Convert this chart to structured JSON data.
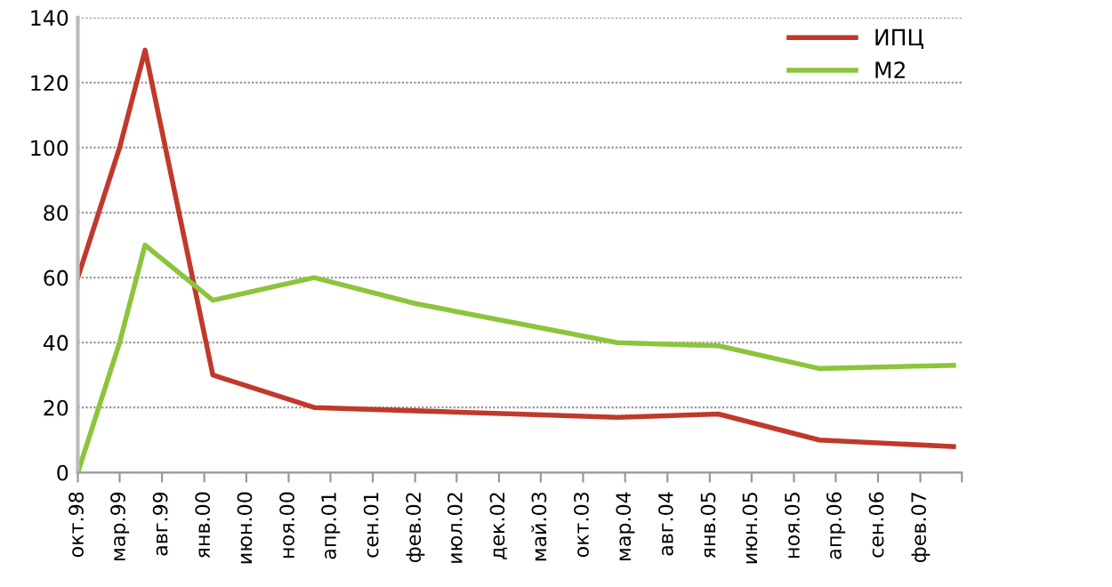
{
  "chart_data": {
    "type": "line",
    "x": [
      "1998-10",
      "1999-03",
      "1999-06",
      "2000-02",
      "2001-02",
      "2002-02",
      "2003-02",
      "2004-02",
      "2005-02",
      "2006-02",
      "2007-06"
    ],
    "series": [
      {
        "name": "ИПЦ",
        "color": "#c0392b",
        "values": [
          60,
          100,
          130,
          30,
          20,
          19,
          18,
          17,
          18,
          10,
          8
        ]
      },
      {
        "name": "M2",
        "color": "#8cc43c",
        "values": [
          0,
          40,
          70,
          53,
          60,
          52,
          46,
          40,
          39,
          32,
          33
        ]
      }
    ],
    "xlim": [
      "1998-10",
      "2007-07"
    ],
    "xticks": [
      {
        "value": "1998-10",
        "label": "окт.98"
      },
      {
        "value": "1999-03",
        "label": "мар.99"
      },
      {
        "value": "1999-08",
        "label": "авг.99"
      },
      {
        "value": "2000-01",
        "label": "янв.00"
      },
      {
        "value": "2000-06",
        "label": "июн.00"
      },
      {
        "value": "2000-11",
        "label": "ноя.00"
      },
      {
        "value": "2001-04",
        "label": "апр.01"
      },
      {
        "value": "2001-09",
        "label": "сен.01"
      },
      {
        "value": "2002-02",
        "label": "фев.02"
      },
      {
        "value": "2002-07",
        "label": "июл.02"
      },
      {
        "value": "2002-12",
        "label": "дек.02"
      },
      {
        "value": "2003-05",
        "label": "май.03"
      },
      {
        "value": "2003-10",
        "label": "окт.03"
      },
      {
        "value": "2004-03",
        "label": "мар.04"
      },
      {
        "value": "2004-08",
        "label": "авг.04"
      },
      {
        "value": "2005-01",
        "label": "янв.05"
      },
      {
        "value": "2005-06",
        "label": "июн.05"
      },
      {
        "value": "2005-11",
        "label": "ноя.05"
      },
      {
        "value": "2006-04",
        "label": "апр.06"
      },
      {
        "value": "2006-09",
        "label": "сен.06"
      },
      {
        "value": "2007-02",
        "label": "фев.07"
      },
      {
        "value": "2007-07",
        "label": null
      }
    ],
    "ylim": [
      0,
      140
    ],
    "yticks": [
      0,
      20,
      40,
      60,
      80,
      100,
      120,
      140
    ],
    "grid": "y",
    "legend": "top right",
    "marker": "none",
    "line_style": "solid"
  }
}
